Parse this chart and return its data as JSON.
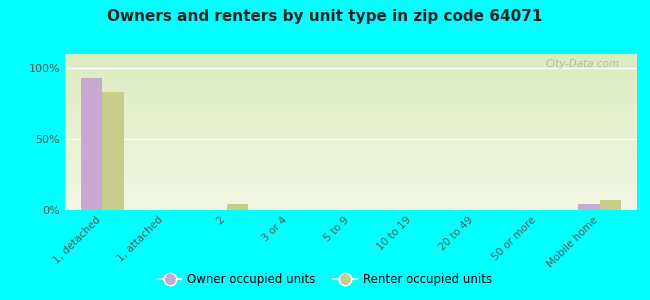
{
  "title": "Owners and renters by unit type in zip code 64071",
  "categories": [
    "1, detached",
    "1, attached",
    "2",
    "3 or 4",
    "5 to 9",
    "10 to 19",
    "20 to 49",
    "50 or more",
    "Mobile home"
  ],
  "owner_values": [
    93,
    0,
    0,
    0,
    0,
    0,
    0,
    0,
    4
  ],
  "renter_values": [
    83,
    0,
    4,
    0,
    0,
    0,
    0,
    0,
    7
  ],
  "owner_color": "#c9a8d4",
  "renter_color": "#c8cc8a",
  "background_color": "#00ffff",
  "ylabel": "",
  "yticks": [
    0,
    50,
    100
  ],
  "ytick_labels": [
    "0%",
    "50%",
    "100%"
  ],
  "watermark": "City-Data.com",
  "legend_owner": "Owner occupied units",
  "legend_renter": "Renter occupied units",
  "bar_width": 0.35,
  "grad_top": "#dcebbf",
  "grad_bottom": "#f2f7e4"
}
